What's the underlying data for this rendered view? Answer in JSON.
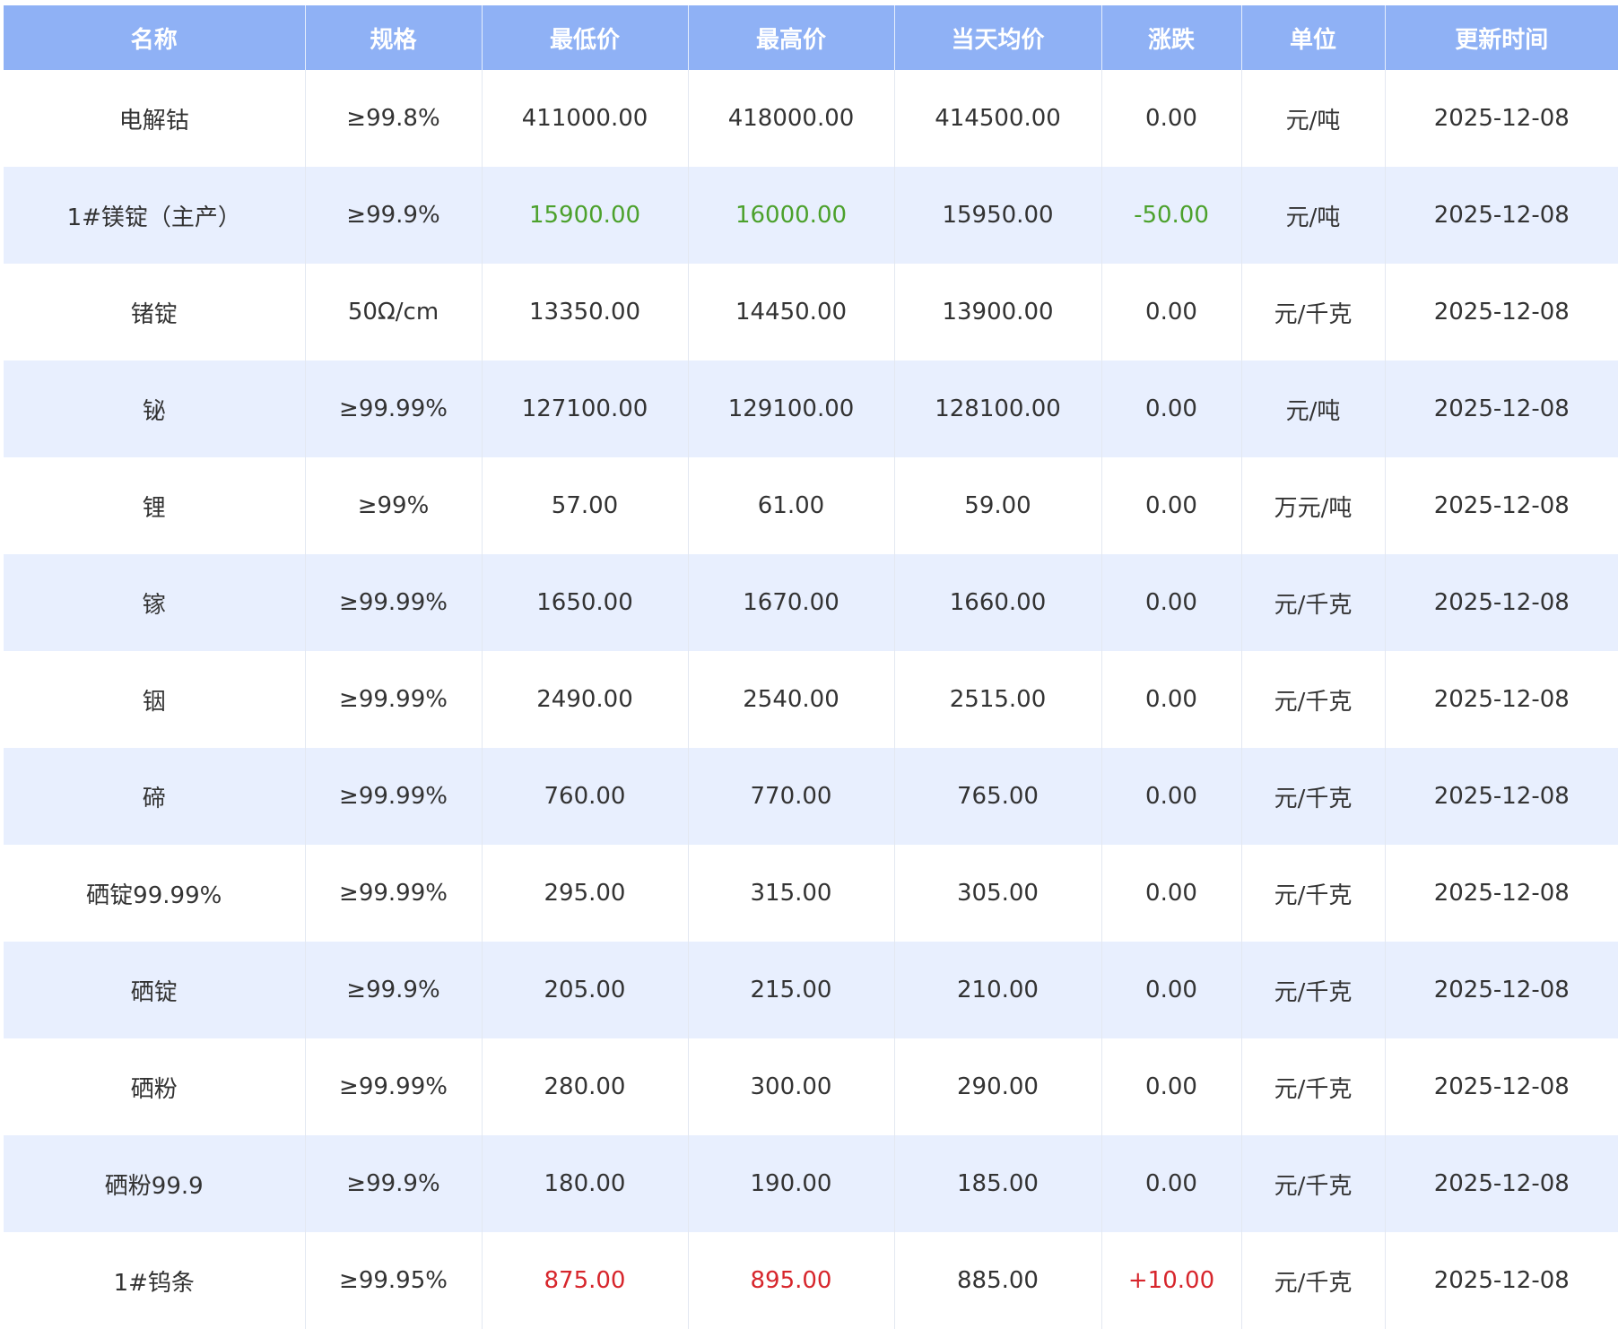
{
  "colors": {
    "header_bg": "#8fb1f5",
    "row_alt_bg": "#e8effe",
    "fall": "#4ca12c",
    "rise": "#d7262c"
  },
  "table": {
    "columns": [
      "名称",
      "规格",
      "最低价",
      "最高价",
      "当天均价",
      "涨跌",
      "单位",
      "更新时间"
    ],
    "rows": [
      {
        "name": "电解钴",
        "spec": "≥99.8%",
        "low": "411000.00",
        "high": "418000.00",
        "avg": "414500.00",
        "change": "0.00",
        "unit": "元/吨",
        "date": "2025-12-08",
        "trend": "flat"
      },
      {
        "name": "1#镁锭（主产）",
        "spec": "≥99.9%",
        "low": "15900.00",
        "high": "16000.00",
        "avg": "15950.00",
        "change": "-50.00",
        "unit": "元/吨",
        "date": "2025-12-08",
        "trend": "down"
      },
      {
        "name": "锗锭",
        "spec": "50Ω/cm",
        "low": "13350.00",
        "high": "14450.00",
        "avg": "13900.00",
        "change": "0.00",
        "unit": "元/千克",
        "date": "2025-12-08",
        "trend": "flat"
      },
      {
        "name": "铋",
        "spec": "≥99.99%",
        "low": "127100.00",
        "high": "129100.00",
        "avg": "128100.00",
        "change": "0.00",
        "unit": "元/吨",
        "date": "2025-12-08",
        "trend": "flat"
      },
      {
        "name": "锂",
        "spec": "≥99%",
        "low": "57.00",
        "high": "61.00",
        "avg": "59.00",
        "change": "0.00",
        "unit": "万元/吨",
        "date": "2025-12-08",
        "trend": "flat"
      },
      {
        "name": "镓",
        "spec": "≥99.99%",
        "low": "1650.00",
        "high": "1670.00",
        "avg": "1660.00",
        "change": "0.00",
        "unit": "元/千克",
        "date": "2025-12-08",
        "trend": "flat"
      },
      {
        "name": "铟",
        "spec": "≥99.99%",
        "low": "2490.00",
        "high": "2540.00",
        "avg": "2515.00",
        "change": "0.00",
        "unit": "元/千克",
        "date": "2025-12-08",
        "trend": "flat"
      },
      {
        "name": "碲",
        "spec": "≥99.99%",
        "low": "760.00",
        "high": "770.00",
        "avg": "765.00",
        "change": "0.00",
        "unit": "元/千克",
        "date": "2025-12-08",
        "trend": "flat"
      },
      {
        "name": "硒锭99.99%",
        "spec": "≥99.99%",
        "low": "295.00",
        "high": "315.00",
        "avg": "305.00",
        "change": "0.00",
        "unit": "元/千克",
        "date": "2025-12-08",
        "trend": "flat"
      },
      {
        "name": "硒锭",
        "spec": "≥99.9%",
        "low": "205.00",
        "high": "215.00",
        "avg": "210.00",
        "change": "0.00",
        "unit": "元/千克",
        "date": "2025-12-08",
        "trend": "flat"
      },
      {
        "name": "硒粉",
        "spec": "≥99.99%",
        "low": "280.00",
        "high": "300.00",
        "avg": "290.00",
        "change": "0.00",
        "unit": "元/千克",
        "date": "2025-12-08",
        "trend": "flat"
      },
      {
        "name": "硒粉99.9",
        "spec": "≥99.9%",
        "low": "180.00",
        "high": "190.00",
        "avg": "185.00",
        "change": "0.00",
        "unit": "元/千克",
        "date": "2025-12-08",
        "trend": "flat"
      },
      {
        "name": "1#钨条",
        "spec": "≥99.95%",
        "low": "875.00",
        "high": "895.00",
        "avg": "885.00",
        "change": "+10.00",
        "unit": "元/千克",
        "date": "2025-12-08",
        "trend": "up"
      }
    ]
  }
}
